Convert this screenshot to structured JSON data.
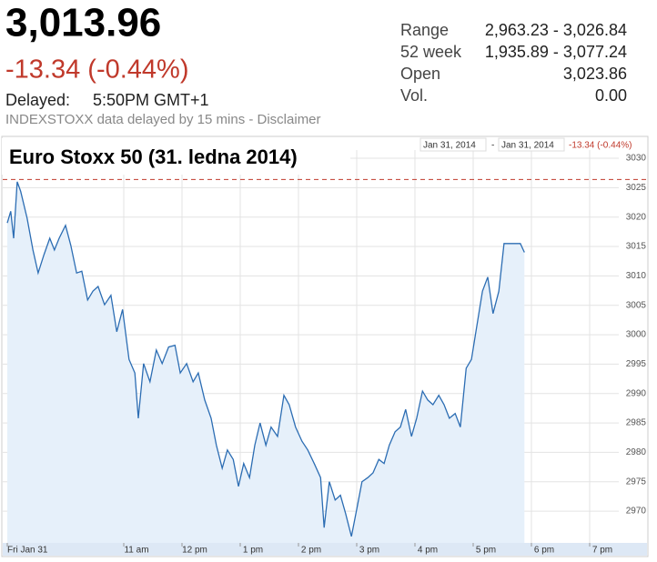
{
  "header": {
    "price": "3,013.96",
    "change": "-13.34 (-0.44%)",
    "delayed_label": "Delayed:",
    "delayed_time": "5:50PM GMT+1",
    "notice": "INDEXSTOXX data delayed by 15 mins - Disclaimer"
  },
  "stats": [
    {
      "label": "Range",
      "value": "2,963.23 - 3,026.84"
    },
    {
      "label": "52 week",
      "value": "1,935.89 - 3,077.24"
    },
    {
      "label": "Open",
      "value": "3,023.86"
    },
    {
      "label": "Vol.",
      "value": "0.00"
    }
  ],
  "chart_data": {
    "type": "line",
    "title": "Euro Stoxx 50 (31. ledna 2014)",
    "range_from": "Jan 31, 2014",
    "range_separator": "-",
    "range_to": "Jan 31, 2014",
    "range_change": "-13.34 (-0.44%)",
    "x": [
      9.0,
      9.06,
      9.11,
      9.17,
      9.23,
      9.34,
      9.44,
      9.53,
      9.63,
      9.73,
      9.81,
      9.89,
      10.0,
      10.09,
      10.19,
      10.28,
      10.38,
      10.47,
      10.56,
      10.67,
      10.78,
      10.88,
      10.98,
      11.09,
      11.19,
      11.25,
      11.34,
      11.45,
      11.56,
      11.66,
      11.77,
      11.88,
      11.97,
      12.08,
      12.19,
      12.28,
      12.39,
      12.5,
      12.59,
      12.69,
      12.78,
      12.88,
      12.97,
      13.06,
      13.16,
      13.25,
      13.34,
      13.44,
      13.53,
      13.64,
      13.75,
      13.84,
      13.95,
      14.06,
      14.16,
      14.27,
      14.38,
      14.44,
      14.53,
      14.63,
      14.72,
      14.81,
      14.91,
      15.0,
      15.09,
      15.19,
      15.28,
      15.38,
      15.47,
      15.56,
      15.66,
      15.75,
      15.84,
      15.94,
      16.03,
      16.13,
      16.22,
      16.31,
      16.41,
      16.5,
      16.59,
      16.69,
      16.78,
      16.88,
      16.97,
      17.06,
      17.16,
      17.25,
      17.34,
      17.44,
      17.53,
      17.63,
      17.72,
      17.81,
      17.88
    ],
    "series": [
      {
        "color": "#2c6db3",
        "fill": "#e6f0fa",
        "values": [
          3019.0,
          3021.0,
          3016.4,
          3026.0,
          3024.4,
          3019.8,
          3014.4,
          3010.5,
          3013.6,
          3016.4,
          3014.4,
          3016.4,
          3018.6,
          3015.2,
          3010.5,
          3010.8,
          3005.9,
          3007.4,
          3008.2,
          3005.1,
          3006.7,
          3000.5,
          3004.3,
          2995.8,
          2993.5,
          2985.8,
          2995.1,
          2992.0,
          2997.4,
          2995.1,
          2997.9,
          2998.2,
          2993.5,
          2995.1,
          2992.0,
          2993.5,
          2988.9,
          2985.8,
          2981.2,
          2977.3,
          2980.4,
          2978.8,
          2974.2,
          2978.1,
          2975.7,
          2981.2,
          2985.0,
          2981.2,
          2984.3,
          2982.7,
          2989.7,
          2988.1,
          2984.3,
          2981.9,
          2980.4,
          2978.1,
          2975.7,
          2967.2,
          2975.0,
          2971.9,
          2972.7,
          2969.6,
          2965.7,
          2970.3,
          2975.0,
          2975.7,
          2976.5,
          2978.8,
          2978.1,
          2981.2,
          2983.5,
          2984.3,
          2987.3,
          2982.7,
          2985.8,
          2990.4,
          2988.9,
          2988.1,
          2989.7,
          2988.1,
          2985.8,
          2986.6,
          2984.3,
          2994.3,
          2995.8,
          3001.3,
          3007.4,
          3009.8,
          3003.6,
          3007.4,
          3015.5,
          3015.5,
          3015.5,
          3015.5,
          3014.0
        ]
      }
    ],
    "xlim": [
      9,
      20
    ],
    "xticks": [
      {
        "value": 9,
        "label": "Fri Jan 31"
      },
      {
        "value": 11,
        "label": "11 am"
      },
      {
        "value": 12,
        "label": "12 pm"
      },
      {
        "value": 13,
        "label": "1 pm"
      },
      {
        "value": 14,
        "label": "2 pm"
      },
      {
        "value": 15,
        "label": "3 pm"
      },
      {
        "value": 16,
        "label": "4 pm"
      },
      {
        "value": 17,
        "label": "5 pm"
      },
      {
        "value": 18,
        "label": "6 pm"
      },
      {
        "value": 19,
        "label": "7 pm"
      }
    ],
    "ylim": [
      2964.6,
      3031.4
    ],
    "yticks": [
      2970,
      2975,
      2980,
      2985,
      2990,
      2995,
      3000,
      3005,
      3010,
      3015,
      3020,
      3025,
      3030
    ],
    "grid": true,
    "reference_line": 3026.4,
    "reference_color": "#c0392b"
  }
}
